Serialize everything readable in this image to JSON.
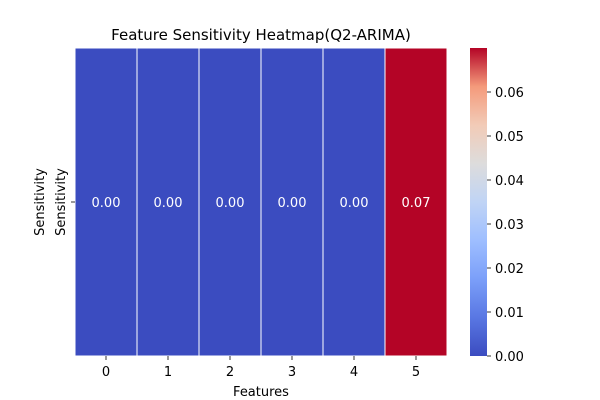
{
  "chart_data": {
    "type": "heatmap",
    "title": "Feature Sensitivity Heatmap(Q2-ARIMA)",
    "xlabel": "Features",
    "ylabel": "Sensitivity",
    "row_labels": [
      "Sensitivity"
    ],
    "categories": [
      "0",
      "1",
      "2",
      "3",
      "4",
      "5"
    ],
    "values": [
      [
        0.0,
        0.0,
        0.0,
        0.0,
        0.0,
        0.07
      ]
    ],
    "annotations": [
      [
        "0.00",
        "0.00",
        "0.00",
        "0.00",
        "0.00",
        "0.07"
      ]
    ],
    "colormap": "coolwarm",
    "colorbar": {
      "range": [
        0.0,
        0.07
      ],
      "ticks": [
        0.0,
        0.01,
        0.02,
        0.03,
        0.04,
        0.05,
        0.06
      ],
      "tick_labels": [
        "0.00",
        "0.01",
        "0.02",
        "0.03",
        "0.04",
        "0.05",
        "0.06"
      ]
    },
    "grid": false
  }
}
